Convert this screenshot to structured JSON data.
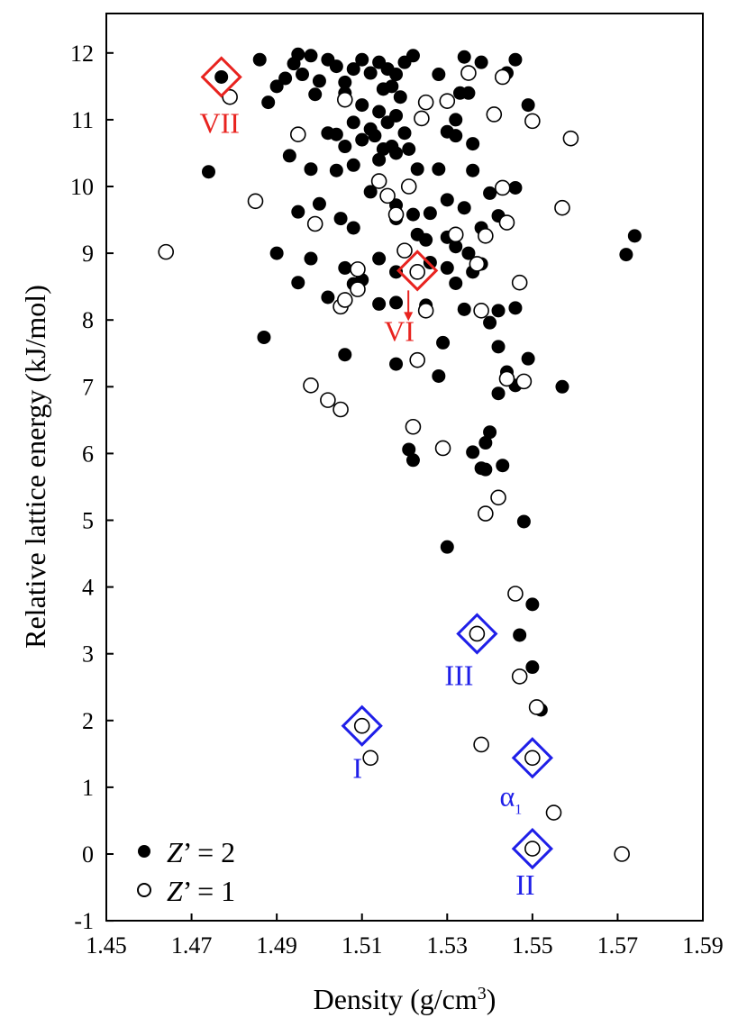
{
  "chart_data": {
    "type": "scatter",
    "xlabel": "Density (g/cm",
    "xlabel_sup": "3",
    "xlabel_end": ")",
    "ylabel": "Relative lattice energy (kJ/mol)",
    "xlim": [
      1.45,
      1.59
    ],
    "ylim": [
      -1,
      12.4
    ],
    "xticks": [
      "1.45",
      "1.47",
      "1.49",
      "1.51",
      "1.53",
      "1.55",
      "1.57",
      "1.59"
    ],
    "yticks": [
      "-1",
      "0",
      "1",
      "2",
      "3",
      "4",
      "5",
      "6",
      "7",
      "8",
      "9",
      "10",
      "11",
      "12"
    ],
    "legend": {
      "placement": "bottom-left",
      "entries": [
        {
          "symbol": "filled",
          "var": "Z",
          "rest": "’ = 2"
        },
        {
          "symbol": "open",
          "var": "Z",
          "rest": "’ = 1"
        }
      ]
    },
    "series": [
      {
        "name": "Z’ = 2",
        "marker": "filled-circle",
        "points": [
          [
            1.486,
            11.9
          ],
          [
            1.488,
            11.26
          ],
          [
            1.49,
            11.5
          ],
          [
            1.492,
            11.62
          ],
          [
            1.494,
            11.84
          ],
          [
            1.495,
            11.98
          ],
          [
            1.496,
            11.68
          ],
          [
            1.498,
            11.96
          ],
          [
            1.5,
            11.58
          ],
          [
            1.502,
            11.9
          ],
          [
            1.504,
            11.8
          ],
          [
            1.506,
            11.56
          ],
          [
            1.508,
            11.76
          ],
          [
            1.51,
            11.9
          ],
          [
            1.512,
            11.7
          ],
          [
            1.514,
            11.86
          ],
          [
            1.516,
            11.76
          ],
          [
            1.518,
            11.68
          ],
          [
            1.52,
            11.86
          ],
          [
            1.522,
            11.96
          ],
          [
            1.515,
            11.46
          ],
          [
            1.517,
            11.5
          ],
          [
            1.519,
            11.34
          ],
          [
            1.528,
            11.68
          ],
          [
            1.534,
            11.94
          ],
          [
            1.538,
            11.86
          ],
          [
            1.544,
            11.7
          ],
          [
            1.546,
            11.9
          ],
          [
            1.549,
            11.22
          ],
          [
            1.499,
            11.38
          ],
          [
            1.506,
            11.4
          ],
          [
            1.51,
            11.22
          ],
          [
            1.508,
            10.96
          ],
          [
            1.512,
            10.86
          ],
          [
            1.514,
            11.12
          ],
          [
            1.516,
            10.96
          ],
          [
            1.518,
            11.06
          ],
          [
            1.52,
            10.8
          ],
          [
            1.502,
            10.8
          ],
          [
            1.504,
            10.78
          ],
          [
            1.506,
            10.6
          ],
          [
            1.51,
            10.7
          ],
          [
            1.513,
            10.76
          ],
          [
            1.515,
            10.56
          ],
          [
            1.517,
            10.6
          ],
          [
            1.493,
            10.46
          ],
          [
            1.498,
            10.26
          ],
          [
            1.504,
            10.24
          ],
          [
            1.508,
            10.32
          ],
          [
            1.514,
            10.4
          ],
          [
            1.518,
            10.5
          ],
          [
            1.474,
            10.22
          ],
          [
            1.521,
            10.56
          ],
          [
            1.523,
            10.26
          ],
          [
            1.53,
            10.82
          ],
          [
            1.532,
            10.76
          ],
          [
            1.533,
            11.4
          ],
          [
            1.535,
            11.4
          ],
          [
            1.532,
            11.0
          ],
          [
            1.528,
            10.26
          ],
          [
            1.536,
            10.24
          ],
          [
            1.536,
            10.64
          ],
          [
            1.512,
            9.92
          ],
          [
            1.516,
            9.86
          ],
          [
            1.518,
            9.72
          ],
          [
            1.522,
            9.58
          ],
          [
            1.526,
            9.6
          ],
          [
            1.53,
            9.8
          ],
          [
            1.534,
            9.68
          ],
          [
            1.54,
            9.9
          ],
          [
            1.546,
            9.98
          ],
          [
            1.495,
            9.62
          ],
          [
            1.5,
            9.74
          ],
          [
            1.505,
            9.52
          ],
          [
            1.508,
            9.38
          ],
          [
            1.518,
            9.52
          ],
          [
            1.523,
            9.28
          ],
          [
            1.525,
            9.2
          ],
          [
            1.53,
            9.24
          ],
          [
            1.532,
            9.1
          ],
          [
            1.535,
            9.0
          ],
          [
            1.538,
            9.38
          ],
          [
            1.542,
            9.56
          ],
          [
            1.49,
            9.0
          ],
          [
            1.498,
            8.92
          ],
          [
            1.506,
            8.78
          ],
          [
            1.51,
            8.6
          ],
          [
            1.514,
            8.92
          ],
          [
            1.518,
            8.72
          ],
          [
            1.526,
            8.86
          ],
          [
            1.53,
            8.78
          ],
          [
            1.532,
            8.55
          ],
          [
            1.536,
            8.72
          ],
          [
            1.538,
            8.84
          ],
          [
            1.495,
            8.56
          ],
          [
            1.502,
            8.34
          ],
          [
            1.508,
            8.54
          ],
          [
            1.514,
            8.24
          ],
          [
            1.518,
            8.26
          ],
          [
            1.525,
            8.22
          ],
          [
            1.534,
            8.16
          ],
          [
            1.54,
            7.96
          ],
          [
            1.542,
            8.14
          ],
          [
            1.546,
            8.18
          ],
          [
            1.487,
            7.74
          ],
          [
            1.506,
            7.48
          ],
          [
            1.518,
            7.34
          ],
          [
            1.529,
            7.66
          ],
          [
            1.542,
            7.6
          ],
          [
            1.549,
            7.42
          ],
          [
            1.528,
            7.16
          ],
          [
            1.544,
            7.22
          ],
          [
            1.542,
            6.9
          ],
          [
            1.546,
            7.02
          ],
          [
            1.557,
            7.0
          ],
          [
            1.572,
            8.98
          ],
          [
            1.574,
            9.26
          ],
          [
            1.521,
            6.06
          ],
          [
            1.522,
            5.9
          ],
          [
            1.54,
            6.32
          ],
          [
            1.539,
            6.16
          ],
          [
            1.536,
            6.02
          ],
          [
            1.538,
            5.78
          ],
          [
            1.539,
            5.76
          ],
          [
            1.543,
            5.82
          ],
          [
            1.548,
            4.98
          ],
          [
            1.53,
            4.6
          ],
          [
            1.55,
            3.74
          ],
          [
            1.547,
            3.28
          ],
          [
            1.55,
            2.8
          ],
          [
            1.552,
            2.16
          ],
          [
            1.477,
            11.64
          ]
        ]
      },
      {
        "name": "Z’ = 1",
        "marker": "open-circle",
        "points": [
          [
            1.464,
            9.02
          ],
          [
            1.479,
            11.34
          ],
          [
            1.485,
            9.78
          ],
          [
            1.495,
            10.78
          ],
          [
            1.499,
            9.44
          ],
          [
            1.506,
            11.3
          ],
          [
            1.514,
            10.08
          ],
          [
            1.516,
            9.86
          ],
          [
            1.518,
            9.58
          ],
          [
            1.52,
            9.04
          ],
          [
            1.521,
            10.0
          ],
          [
            1.524,
            11.02
          ],
          [
            1.525,
            11.26
          ],
          [
            1.53,
            11.28
          ],
          [
            1.532,
            9.28
          ],
          [
            1.535,
            11.7
          ],
          [
            1.539,
            9.26
          ],
          [
            1.541,
            11.08
          ],
          [
            1.543,
            11.64
          ],
          [
            1.543,
            9.98
          ],
          [
            1.544,
            9.46
          ],
          [
            1.55,
            10.98
          ],
          [
            1.557,
            9.68
          ],
          [
            1.559,
            10.72
          ],
          [
            1.505,
            8.2
          ],
          [
            1.506,
            8.3
          ],
          [
            1.509,
            8.46
          ],
          [
            1.509,
            8.76
          ],
          [
            1.523,
            8.72
          ],
          [
            1.525,
            8.14
          ],
          [
            1.537,
            8.84
          ],
          [
            1.538,
            8.14
          ],
          [
            1.547,
            8.56
          ],
          [
            1.523,
            7.4
          ],
          [
            1.544,
            7.12
          ],
          [
            1.548,
            7.08
          ],
          [
            1.498,
            7.02
          ],
          [
            1.502,
            6.8
          ],
          [
            1.505,
            6.66
          ],
          [
            1.522,
            6.4
          ],
          [
            1.529,
            6.08
          ],
          [
            1.539,
            5.1
          ],
          [
            1.542,
            5.34
          ],
          [
            1.546,
            3.9
          ],
          [
            1.537,
            3.3
          ],
          [
            1.547,
            2.66
          ],
          [
            1.551,
            2.2
          ],
          [
            1.51,
            1.92
          ],
          [
            1.512,
            1.44
          ],
          [
            1.538,
            1.64
          ],
          [
            1.55,
            1.44
          ],
          [
            1.555,
            0.62
          ],
          [
            1.55,
            0.08
          ],
          [
            1.571,
            0.0
          ]
        ]
      }
    ],
    "annotations": [
      {
        "label": "VII",
        "color": "#e8231f",
        "x": 1.477,
        "y": 11.64,
        "marker": "diamond"
      },
      {
        "label": "VI",
        "color": "#e8231f",
        "x": 1.523,
        "y": 8.74,
        "marker": "diamond",
        "arrow": true
      },
      {
        "label": "III",
        "color": "#1f1fe8",
        "x": 1.537,
        "y": 3.3,
        "marker": "diamond"
      },
      {
        "label": "I",
        "color": "#1f1fe8",
        "x": 1.51,
        "y": 1.92,
        "marker": "diamond"
      },
      {
        "label": "α",
        "sub": "1",
        "color": "#1f1fe8",
        "x": 1.55,
        "y": 1.44,
        "marker": "diamond"
      },
      {
        "label": "II",
        "color": "#1f1fe8",
        "x": 1.55,
        "y": 0.08,
        "marker": "diamond"
      }
    ],
    "grid": false
  }
}
